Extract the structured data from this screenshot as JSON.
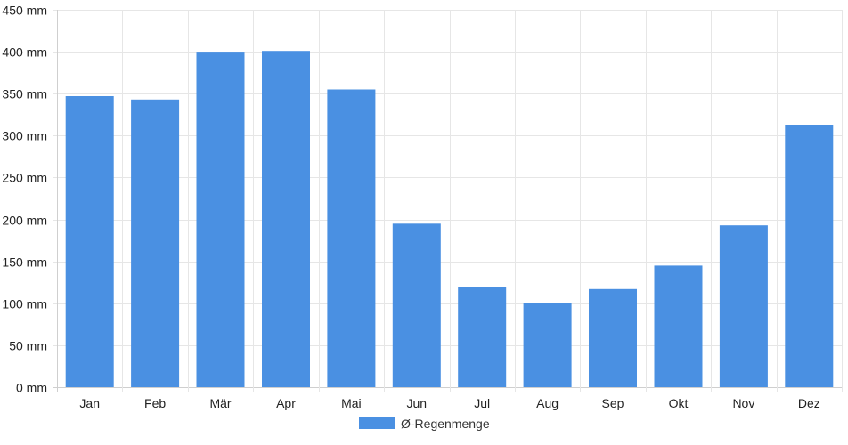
{
  "chart_data": {
    "type": "bar",
    "categories": [
      "Jan",
      "Feb",
      "Mär",
      "Apr",
      "Mai",
      "Jun",
      "Jul",
      "Aug",
      "Sep",
      "Okt",
      "Nov",
      "Dez"
    ],
    "series": [
      {
        "name": "Ø-Regenmenge",
        "color": "#4a90e2",
        "values": [
          347,
          343,
          400,
          401,
          355,
          195,
          119,
          100,
          117,
          145,
          193,
          313
        ]
      }
    ],
    "ylim": [
      0,
      450
    ],
    "yticks": [
      0,
      50,
      100,
      150,
      200,
      250,
      300,
      350,
      400,
      450
    ],
    "yunit": "mm",
    "title": "",
    "xlabel": "",
    "ylabel": "",
    "grid": true,
    "legend_position": "bottom"
  }
}
